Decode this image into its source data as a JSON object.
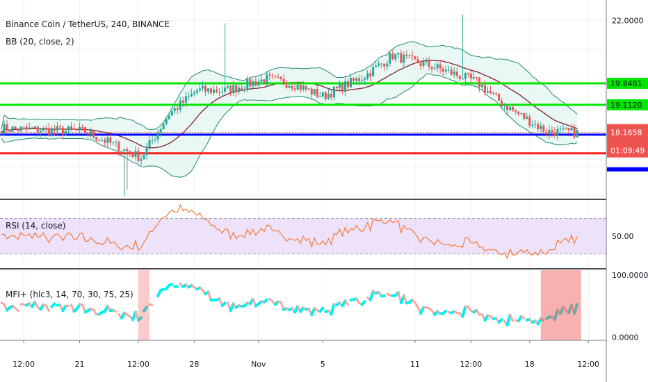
{
  "chart_data": [
    {
      "type": "candlestick",
      "title": "Binance Coin / TetherUS, 240, BINANCE",
      "indicator": "BB (20, close, 2)",
      "ylim": [
        15.9,
        22.7
      ],
      "y_ticks": [
        "22.0000"
      ],
      "horizontal_lines": [
        {
          "name": "green-upper",
          "value": 19.8481,
          "label": "19.8481",
          "color": "#00e600"
        },
        {
          "name": "green-lower",
          "value": 19.112,
          "label": "19.1120",
          "color": "#00e600"
        },
        {
          "name": "blue",
          "value": 18.09,
          "color": "#0000ff"
        },
        {
          "name": "red",
          "value": 17.45,
          "color": "#ff1a1a"
        }
      ],
      "last_price": {
        "value": 18.1658,
        "label": "18.1658",
        "countdown": "01:09:49",
        "color": "#ef5350"
      },
      "anchors_x_index": [
        0,
        30,
        50,
        60,
        70,
        80,
        95,
        105,
        115,
        130,
        140,
        155,
        170,
        180,
        195,
        206
      ],
      "anchors_close": [
        18.3,
        18.2,
        17.3,
        18.8,
        19.6,
        19.6,
        20.0,
        19.8,
        19.4,
        20.1,
        20.8,
        20.4,
        19.9,
        19.1,
        18.2,
        18.16
      ]
    },
    {
      "type": "line",
      "title": "RSI (14, close)",
      "ylim": [
        14,
        90
      ],
      "y_ticks": [
        "50.00"
      ],
      "band": [
        30,
        70
      ],
      "color": "#f47b3e",
      "band_color": "#e6d6f7"
    },
    {
      "type": "area",
      "title": "MFI+ (hlc3, 14, 70, 30, 75, 25)",
      "ylim": [
        -5,
        108
      ],
      "y_ticks": [
        "100.0000",
        "0.0000"
      ],
      "up_color": "#00f0f0",
      "down_color": "#f4a7a0"
    }
  ],
  "x_axis": {
    "ticks": [
      {
        "label": "12:00",
        "i": 8
      },
      {
        "label": "21",
        "i": 28
      },
      {
        "label": "12:00",
        "i": 49
      },
      {
        "label": "28",
        "i": 69
      },
      {
        "label": "Nov",
        "i": 92
      },
      {
        "label": "5",
        "i": 115
      },
      {
        "label": "11",
        "i": 148
      },
      {
        "label": "12:00",
        "i": 168
      },
      {
        "label": "18",
        "i": 189
      },
      {
        "label": "12:00",
        "i": 210
      }
    ]
  }
}
